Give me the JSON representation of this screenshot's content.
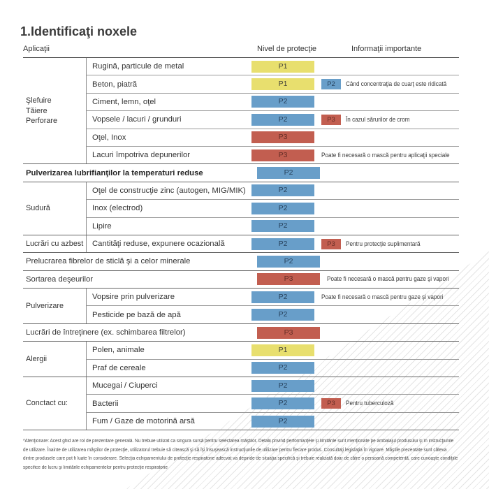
{
  "title": "1.Identificaţi noxele",
  "columns": {
    "applications": "Aplicaţii",
    "protection": "Nivel de protecţie",
    "info": "Informaţii importante"
  },
  "colors": {
    "p1": "#e8df6e",
    "p1text": "#45453a",
    "p2": "#689ec9",
    "p2text": "#27425d",
    "p3": "#c25e50",
    "p3text": "#662e27"
  },
  "groups": [
    {
      "category": "Şlefuire\nTăiere\nPerforare",
      "rows": [
        {
          "label": "Rugină, particule de metal",
          "level": "P1"
        },
        {
          "label": "Beton, piatră",
          "level": "P1",
          "note_level": "P2",
          "note": "Când concentraţia de cuarţ este ridicată"
        },
        {
          "label": "Ciment, lemn, oţel",
          "level": "P2"
        },
        {
          "label": "Vopsele / lacuri / grunduri",
          "level": "P2",
          "note_level": "P3",
          "note": "În cazul sărurilor de crom"
        },
        {
          "label": "Oţel, Inox",
          "level": "P3"
        },
        {
          "label": "Lacuri împotriva depunerilor",
          "level": "P3",
          "note": "Poate fi necesară o mască pentru aplicaţii speciale"
        }
      ]
    },
    {
      "category": null,
      "rows": [
        {
          "label": "Pulverizarea lubrifianţilor la temperaturi reduse",
          "level": "P2"
        }
      ]
    },
    {
      "category": "Sudură",
      "rows": [
        {
          "label": "Oţel de construcţie zinc (autogen, MIG/MIK)",
          "level": "P2"
        },
        {
          "label": "Inox (electrod)",
          "level": "P2"
        },
        {
          "label": "Lipire",
          "level": "P2"
        }
      ]
    },
    {
      "category": "Lucrări cu azbest",
      "rows": [
        {
          "label": "Cantităţi reduse, expunere ocazională",
          "level": "P2",
          "note_level": "P3",
          "note": "Pentru protecţie suplimentară"
        }
      ]
    },
    {
      "category": null,
      "rows": [
        {
          "label": "Prelucrarea fibrelor de sticlă şi a celor minerale",
          "level": "P2"
        }
      ]
    },
    {
      "category": null,
      "rows": [
        {
          "label": "Sortarea deşeurilor",
          "level": "P3",
          "note": "Poate fi necesară o mască pentru gaze şi vapori"
        }
      ]
    },
    {
      "category": "Pulverizare",
      "rows": [
        {
          "label": "Vopsire prin pulverizare",
          "level": "P2",
          "note": "Poate fi necesară o mască pentru gaze şi vapori"
        },
        {
          "label": "Pesticide pe bază de apă",
          "level": "P2"
        }
      ]
    },
    {
      "category": null,
      "rows": [
        {
          "label": "Lucrări de întreţinere (ex. schimbarea filtrelor)",
          "level": "P3"
        }
      ]
    },
    {
      "category": "Alergii",
      "rows": [
        {
          "label": "Polen, animale",
          "level": "P1"
        },
        {
          "label": "Praf de cereale",
          "level": "P2"
        }
      ]
    },
    {
      "category": "Conctact cu:",
      "rows": [
        {
          "label": "Mucegai / Ciuperci",
          "level": "P2"
        },
        {
          "label": "Bacterii",
          "level": "P2",
          "note_level": "P3",
          "note": "Pentru tuberculoză"
        },
        {
          "label": "Fum / Gaze de motorină arsă",
          "level": "P2"
        }
      ]
    }
  ],
  "footnote": {
    "lines": [
      "*Atenţionare: Acest ghid are rol de prezentare generală. Nu trebuie utilizat ca singura sursă pentru selectarea măştilor. Detalii privind performanţele şi limitările sunt menţionate pe ambalajul produsului şi în instrucţiunile",
      "de utilizare. Înainte de utilizarea măştilor de protecţie, utilizatorul trebuie să citească şi să îşi însuşească instrucţiunile de utilizare pentru fiecare produs. Consultaţi legislaţia în vigoare. Măştile prezentate sunt câteva",
      "dintre produsele care pot fi luate în considerare. Selecţia echipamentului de protecţie respiratorie adecvat va depinde de situaţia specifică şi trebuie realizată doar de către o persoană competentă, care cunoaşte condiţiile",
      "specifice de lucru şi limitările echipamentelor pentru protecţie respiratorie"
    ]
  }
}
